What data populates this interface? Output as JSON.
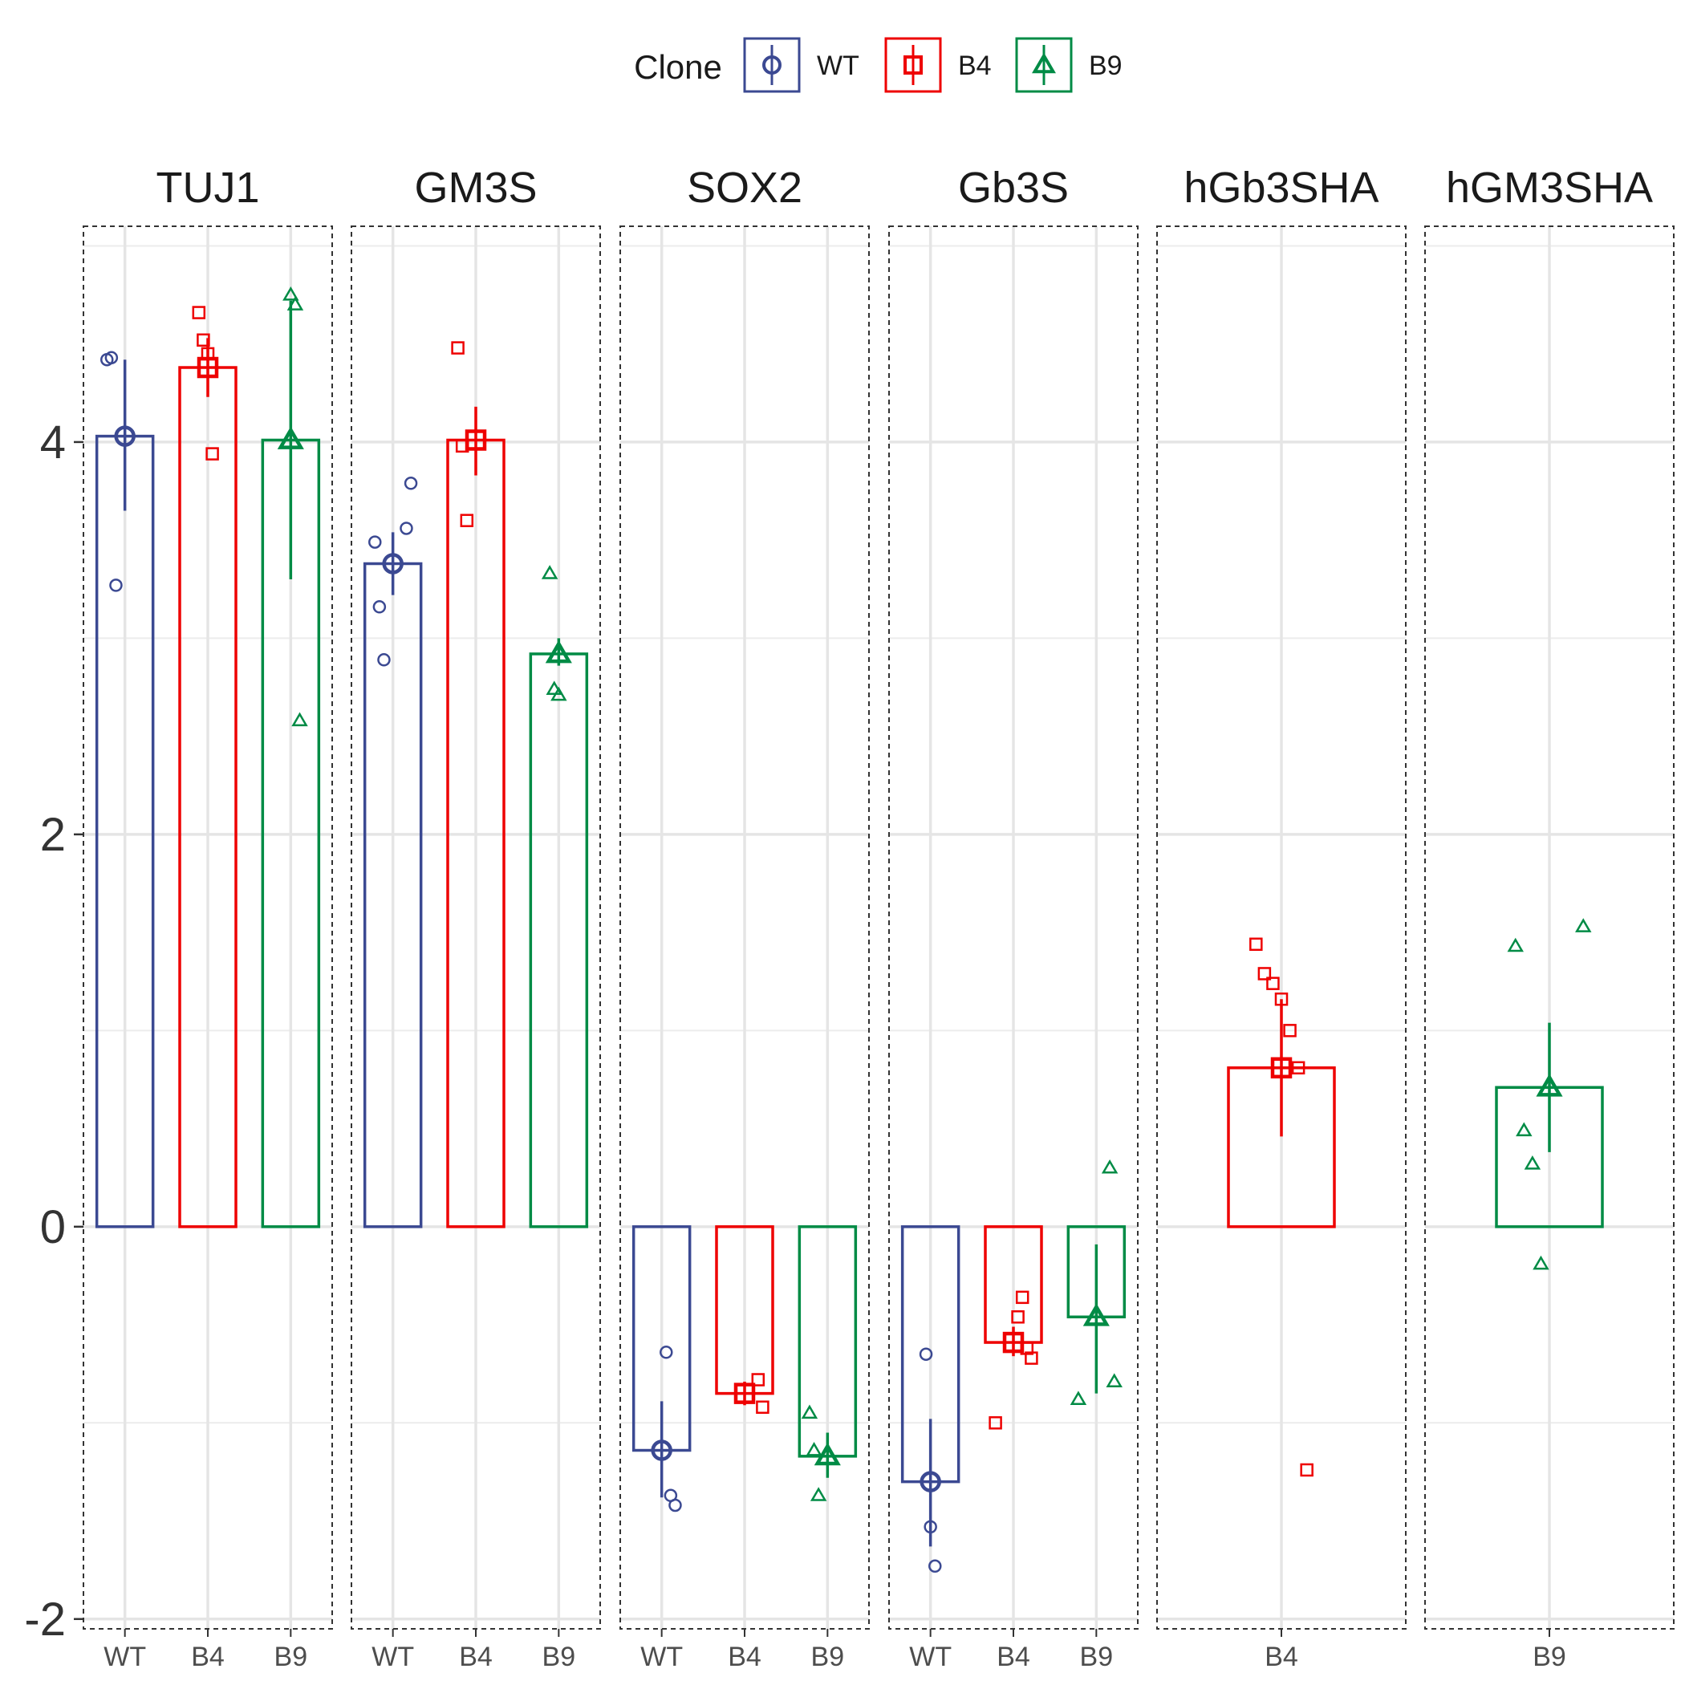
{
  "chart_data": {
    "type": "bar",
    "legend": {
      "title": "Clone",
      "position": "top",
      "entries": [
        {
          "label": "WT",
          "color": "#3B4992",
          "shape": "circle"
        },
        {
          "label": "B4",
          "color": "#EE0000",
          "shape": "square"
        },
        {
          "label": "B9",
          "color": "#008B45",
          "shape": "triangle"
        }
      ]
    },
    "y_axis": {
      "ylim": [
        -2.05,
        5.1
      ],
      "ticks": [
        -2,
        0,
        2,
        4
      ],
      "tick_labels": [
        "-2",
        "0",
        "2",
        "4"
      ]
    },
    "grid": true,
    "facets": [
      {
        "name": "TUJ1",
        "categories": [
          "WT",
          "B4",
          "B9"
        ],
        "bars": [
          {
            "clone": "WT",
            "mean": 4.03,
            "err_low": 3.65,
            "err_high": 4.42,
            "points": [
              4.42,
              4.43,
              3.27
            ]
          },
          {
            "clone": "B4",
            "mean": 4.38,
            "err_low": 4.23,
            "err_high": 4.53,
            "points": [
              4.66,
              4.52,
              4.45,
              3.94
            ]
          },
          {
            "clone": "B9",
            "mean": 4.01,
            "err_low": 3.3,
            "err_high": 4.72,
            "points": [
              4.75,
              4.7,
              2.58
            ]
          }
        ]
      },
      {
        "name": "GM3S",
        "categories": [
          "WT",
          "B4",
          "B9"
        ],
        "bars": [
          {
            "clone": "WT",
            "mean": 3.38,
            "err_low": 3.22,
            "err_high": 3.54,
            "points": [
              3.56,
              3.79,
              3.49,
              3.16,
              2.89
            ]
          },
          {
            "clone": "B4",
            "mean": 4.01,
            "err_low": 3.83,
            "err_high": 4.18,
            "points": [
              4.48,
              3.98,
              3.6
            ]
          },
          {
            "clone": "B9",
            "mean": 2.92,
            "err_low": 2.86,
            "err_high": 3.0,
            "points": [
              3.33,
              2.74,
              2.71
            ]
          }
        ]
      },
      {
        "name": "SOX2",
        "categories": [
          "WT",
          "B4",
          "B9"
        ],
        "bars": [
          {
            "clone": "WT",
            "mean": -1.14,
            "err_low": -1.38,
            "err_high": -0.89,
            "points": [
              -0.64,
              -1.37,
              -1.42
            ]
          },
          {
            "clone": "B4",
            "mean": -0.85,
            "err_low": -0.91,
            "err_high": -0.79,
            "points": [
              -0.78,
              -0.92
            ]
          },
          {
            "clone": "B9",
            "mean": -1.17,
            "err_low": -1.28,
            "err_high": -1.05,
            "points": [
              -0.95,
              -1.14,
              -1.37
            ]
          }
        ]
      },
      {
        "name": "Gb3S",
        "categories": [
          "WT",
          "B4",
          "B9"
        ],
        "bars": [
          {
            "clone": "WT",
            "mean": -1.3,
            "err_low": -1.63,
            "err_high": -0.98,
            "points": [
              -0.65,
              -1.53,
              -1.73
            ]
          },
          {
            "clone": "B4",
            "mean": -0.59,
            "err_low": -0.66,
            "err_high": -0.51,
            "points": [
              -0.46,
              -0.36,
              -0.62,
              -0.67,
              -1.0
            ]
          },
          {
            "clone": "B9",
            "mean": -0.46,
            "err_low": -0.85,
            "err_high": -0.09,
            "points": [
              0.3,
              -0.79,
              -0.88
            ]
          }
        ]
      },
      {
        "name": "hGb3SHA",
        "categories": [
          "B4"
        ],
        "bars": [
          {
            "clone": "B4",
            "mean": 0.81,
            "err_low": 0.46,
            "err_high": 1.16,
            "points": [
              1.44,
              1.29,
              1.24,
              1.16,
              1.0,
              0.81,
              -1.24
            ]
          }
        ]
      },
      {
        "name": "hGM3SHA",
        "categories": [
          "B9"
        ],
        "bars": [
          {
            "clone": "B9",
            "mean": 0.71,
            "err_low": 0.38,
            "err_high": 1.04,
            "points": [
              1.53,
              1.43,
              0.49,
              0.32,
              -0.19
            ]
          }
        ]
      }
    ]
  }
}
